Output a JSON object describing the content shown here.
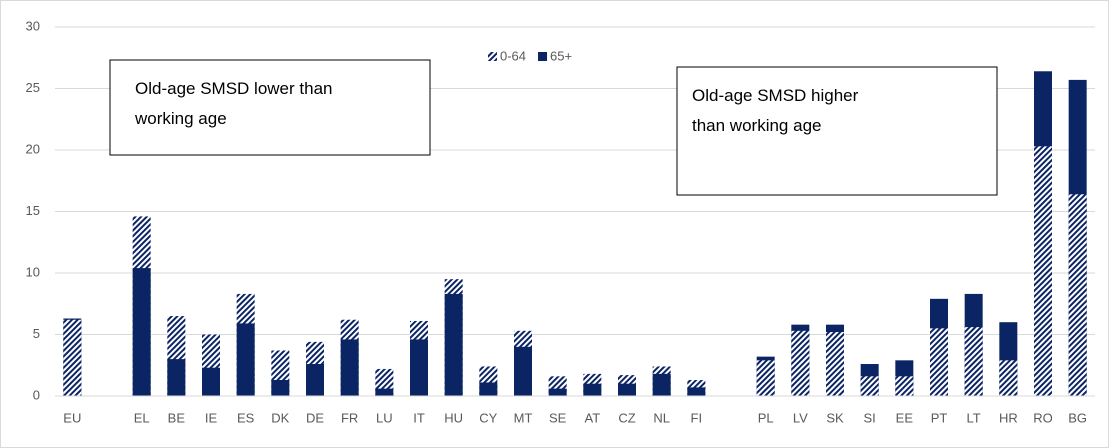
{
  "chart_data": {
    "type": "bar",
    "overlap": true,
    "categories": [
      "EU",
      null,
      "EL",
      "BE",
      "IE",
      "ES",
      "DK",
      "DE",
      "FR",
      "LU",
      "IT",
      "HU",
      "CY",
      "MT",
      "SE",
      "AT",
      "CZ",
      "NL",
      "FI",
      null,
      "PL",
      "LV",
      "SK",
      "SI",
      "EE",
      "PT",
      "LT",
      "HR",
      "RO",
      "BG"
    ],
    "series": [
      {
        "name": "0-64",
        "color": "#0b2463",
        "hatched": true,
        "values": [
          6.2,
          null,
          14.6,
          6.5,
          5.0,
          8.3,
          3.7,
          4.4,
          6.2,
          2.2,
          6.1,
          9.5,
          2.4,
          5.3,
          1.6,
          1.8,
          1.7,
          2.4,
          1.3,
          null,
          2.9,
          5.3,
          5.2,
          1.6,
          1.6,
          5.5,
          5.6,
          2.9,
          20.3,
          16.4
        ]
      },
      {
        "name": "65+",
        "color": "#0b2463",
        "hatched": false,
        "values": [
          6.3,
          null,
          10.4,
          3.0,
          2.3,
          5.9,
          1.3,
          2.6,
          4.6,
          0.6,
          4.6,
          8.3,
          1.1,
          4.0,
          0.6,
          1.0,
          1.0,
          1.8,
          0.7,
          null,
          3.2,
          5.8,
          5.8,
          2.6,
          2.9,
          7.9,
          8.3,
          6.0,
          26.4,
          25.7
        ]
      }
    ],
    "ylim": [
      0,
      30
    ],
    "yticks": [
      0,
      5,
      10,
      15,
      20,
      25,
      30
    ],
    "grid": true,
    "annotations": [
      {
        "lines": [
          "Old-age SMSD lower than",
          "working age"
        ]
      },
      {
        "lines": [
          "Old-age SMSD higher",
          "than working age"
        ]
      }
    ]
  }
}
